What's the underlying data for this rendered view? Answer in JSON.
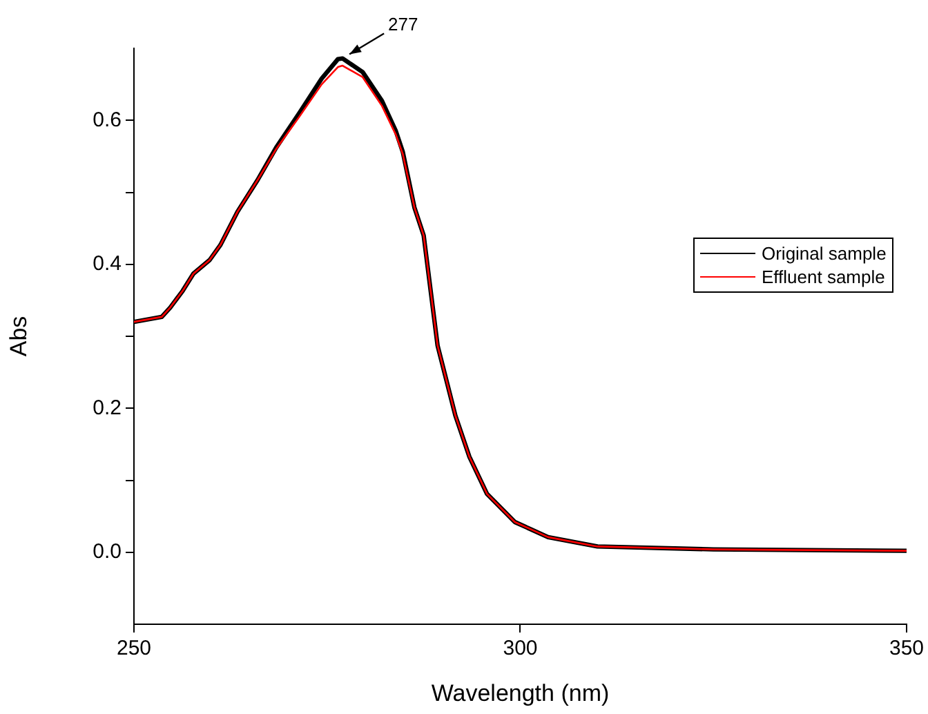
{
  "chart_data": {
    "type": "line",
    "xlabel": "Wavelength (nm)",
    "ylabel": "Abs",
    "x": [
      250,
      253.6,
      254.7,
      256.3,
      257.7,
      259.8,
      261.2,
      263.4,
      266,
      268.4,
      271.4,
      274.3,
      276.4,
      277,
      279.6,
      282.1,
      283.9,
      284.8,
      286.3,
      287.5,
      289.3,
      291.6,
      293.4,
      295.7,
      299.3,
      303.6,
      310,
      325,
      350
    ],
    "series": [
      {
        "name": "Original sample",
        "color": "#000000",
        "values": [
          0.32,
          0.327,
          0.34,
          0.363,
          0.387,
          0.406,
          0.427,
          0.473,
          0.517,
          0.562,
          0.61,
          0.658,
          0.685,
          0.686,
          0.667,
          0.627,
          0.585,
          0.556,
          0.479,
          0.44,
          0.287,
          0.19,
          0.133,
          0.081,
          0.042,
          0.021,
          0.008,
          0.004,
          0.002
        ]
      },
      {
        "name": "Effluent sample",
        "color": "#ff0000",
        "values": [
          0.32,
          0.327,
          0.34,
          0.363,
          0.387,
          0.406,
          0.427,
          0.473,
          0.517,
          0.56,
          0.605,
          0.65,
          0.674,
          0.676,
          0.66,
          0.62,
          0.58,
          0.553,
          0.479,
          0.44,
          0.287,
          0.19,
          0.133,
          0.081,
          0.042,
          0.021,
          0.008,
          0.004,
          0.002
        ]
      }
    ],
    "xlim": [
      250,
      350
    ],
    "xticks": [
      250,
      300,
      350
    ],
    "ylim": [
      -0.1,
      0.7
    ],
    "yticks": [
      {
        "value": 0,
        "label": "0.0"
      },
      {
        "value": 0.1,
        "label": null
      },
      {
        "value": 0.2,
        "label": "0.2"
      },
      {
        "value": 0.3,
        "label": null
      },
      {
        "value": 0.4,
        "label": "0.4"
      },
      {
        "value": 0.5,
        "label": null
      },
      {
        "value": 0.6,
        "label": "0.6"
      }
    ],
    "annotations": [
      {
        "text": "277",
        "x": 277,
        "y": 0.686
      }
    ],
    "legend": "right",
    "grid": false,
    "marker": "none",
    "line_style": "solid"
  }
}
